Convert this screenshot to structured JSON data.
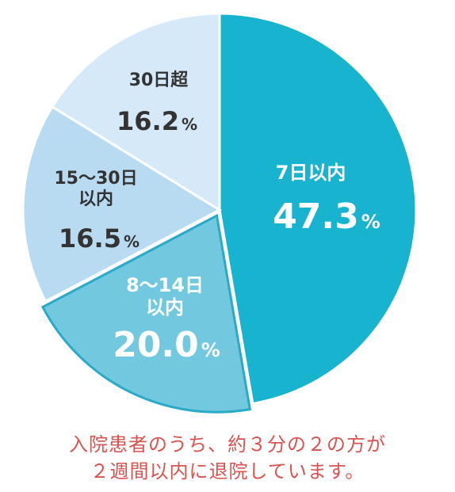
{
  "chart_data": {
    "type": "pie",
    "slices": [
      {
        "label": "7日以内",
        "value": 47.3,
        "display": "47.3",
        "unit": "%",
        "color": "#17b3cf"
      },
      {
        "label": "8～14日以内",
        "value": 20.0,
        "display": "20.0",
        "unit": "%",
        "color": "#72c8de"
      },
      {
        "label": "15～30日以内",
        "value": 16.5,
        "display": "16.5",
        "unit": "%",
        "color": "#b9dbf2"
      },
      {
        "label": "30日超",
        "value": 16.2,
        "display": "16.2",
        "unit": "%",
        "color": "#d6e9f8"
      }
    ]
  },
  "caption": {
    "line1": "入院患者のうち、約３分の２の方が",
    "line2": "２週間以内に退院しています。"
  }
}
